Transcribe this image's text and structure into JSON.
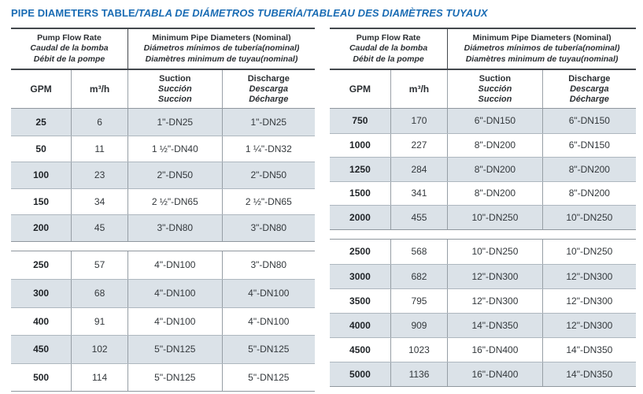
{
  "page_title": {
    "en": "PIPE DIAMETERS TABLE",
    "translations": "/TABLA DE DIÁMETROS TUBERÍA/TABLEAU DES DIAMÈTRES TUYAUX"
  },
  "colors": {
    "title_blue": "#1a6cb4",
    "row_shade": "#dbe2e8"
  },
  "column_headers": {
    "flow_rate": {
      "line1": "Pump Flow Rate",
      "line2": "Caudal de la bomba",
      "line3": "Débit de la pompe"
    },
    "min_diameters": {
      "line1": "Minimum Pipe Diameters (Nominal)",
      "line2": "Diámetros mínimos de tubería(nominal)",
      "line3": "Diamètres minimum de tuyau(nominal)"
    },
    "gpm": "GPM",
    "m3h": "m³/h",
    "suction": {
      "line1": "Suction",
      "line2": "Succión",
      "line3": "Succion"
    },
    "discharge": {
      "line1": "Discharge",
      "line2": "Descarga",
      "line3": "Décharge"
    }
  },
  "left": {
    "block1": [
      {
        "gpm": "25",
        "m3h": "6",
        "suction": "1\"-DN25",
        "discharge": "1\"-DN25"
      },
      {
        "gpm": "50",
        "m3h": "11",
        "suction": "1 ½\"-DN40",
        "discharge": "1 ¼\"-DN32"
      },
      {
        "gpm": "100",
        "m3h": "23",
        "suction": "2\"-DN50",
        "discharge": "2\"-DN50"
      },
      {
        "gpm": "150",
        "m3h": "34",
        "suction": "2 ½\"-DN65",
        "discharge": "2 ½\"-DN65"
      },
      {
        "gpm": "200",
        "m3h": "45",
        "suction": "3\"-DN80",
        "discharge": "3\"-DN80"
      }
    ],
    "block2": [
      {
        "gpm": "250",
        "m3h": "57",
        "suction": "4\"-DN100",
        "discharge": "3\"-DN80"
      },
      {
        "gpm": "300",
        "m3h": "68",
        "suction": "4\"-DN100",
        "discharge": "4\"-DN100"
      },
      {
        "gpm": "400",
        "m3h": "91",
        "suction": "4\"-DN100",
        "discharge": "4\"-DN100"
      },
      {
        "gpm": "450",
        "m3h": "102",
        "suction": "5\"-DN125",
        "discharge": "5\"-DN125"
      },
      {
        "gpm": "500",
        "m3h": "114",
        "suction": "5\"-DN125",
        "discharge": "5\"-DN125"
      }
    ]
  },
  "right": {
    "block1": [
      {
        "gpm": "750",
        "m3h": "170",
        "suction": "6\"-DN150",
        "discharge": "6\"-DN150"
      },
      {
        "gpm": "1000",
        "m3h": "227",
        "suction": "8\"-DN200",
        "discharge": "6\"-DN150"
      },
      {
        "gpm": "1250",
        "m3h": "284",
        "suction": "8\"-DN200",
        "discharge": "8\"-DN200"
      },
      {
        "gpm": "1500",
        "m3h": "341",
        "suction": "8\"-DN200",
        "discharge": "8\"-DN200"
      },
      {
        "gpm": "2000",
        "m3h": "455",
        "suction": "10\"-DN250",
        "discharge": "10\"-DN250"
      }
    ],
    "block2": [
      {
        "gpm": "2500",
        "m3h": "568",
        "suction": "10\"-DN250",
        "discharge": "10\"-DN250"
      },
      {
        "gpm": "3000",
        "m3h": "682",
        "suction": "12\"-DN300",
        "discharge": "12\"-DN300"
      },
      {
        "gpm": "3500",
        "m3h": "795",
        "suction": "12\"-DN300",
        "discharge": "12\"-DN300"
      },
      {
        "gpm": "4000",
        "m3h": "909",
        "suction": "14\"-DN350",
        "discharge": "12\"-DN300"
      },
      {
        "gpm": "4500",
        "m3h": "1023",
        "suction": "16\"-DN400",
        "discharge": "14\"-DN350"
      },
      {
        "gpm": "5000",
        "m3h": "1136",
        "suction": "16\"-DN400",
        "discharge": "14\"-DN350"
      }
    ]
  }
}
